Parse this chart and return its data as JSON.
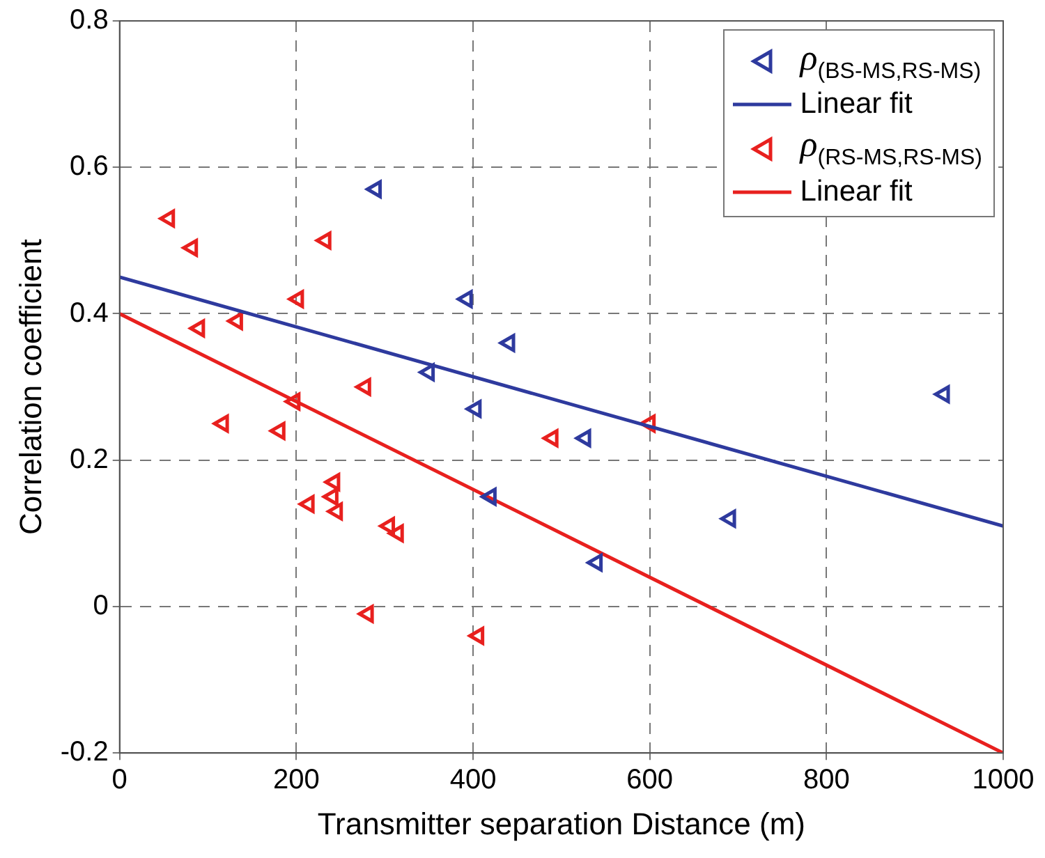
{
  "chart_data": {
    "type": "scatter",
    "xlabel": "Transmitter separation Distance (m)",
    "ylabel": "Correlation coefficient",
    "xlim": [
      0,
      1000
    ],
    "xticks": [
      0,
      200,
      400,
      600,
      800,
      1000
    ],
    "ylim": [
      -0.2,
      0.8
    ],
    "yticks": [
      -0.2,
      0,
      0.2,
      0.4,
      0.6,
      0.8
    ],
    "grid": true,
    "legend": "top right",
    "series": [
      {
        "name": "ρ$_{(BS-MS,RS-MS)}$",
        "marker": "triangle",
        "color": "#2e3a9e",
        "x": [
          290,
          393,
          441,
          350,
          403,
          527,
          933,
          691,
          540,
          420
        ],
        "values": [
          0.57,
          0.42,
          0.36,
          0.32,
          0.27,
          0.23,
          0.29,
          0.12,
          0.06,
          0.15
        ]
      },
      {
        "name": "Linear fit",
        "type": "line",
        "marker": "none",
        "color": "#2e3a9e",
        "x": [
          0,
          1000
        ],
        "values": [
          0.45,
          0.11
        ]
      },
      {
        "name": "ρ$_{(RS-MS,RS-MS)}$",
        "marker": "triangle",
        "color": "#e8201e",
        "x": [
          56,
          82,
          233,
          202,
          90,
          133,
          278,
          198,
          117,
          181,
          600,
          490,
          214,
          243,
          241,
          246,
          305,
          315,
          281,
          406
        ],
        "values": [
          0.53,
          0.49,
          0.5,
          0.42,
          0.38,
          0.39,
          0.3,
          0.28,
          0.25,
          0.24,
          0.25,
          0.23,
          0.14,
          0.17,
          0.15,
          0.13,
          0.11,
          0.1,
          -0.01,
          -0.04
        ]
      },
      {
        "name": "Linear fit",
        "type": "line",
        "marker": "none",
        "color": "#e8201e",
        "x": [
          0,
          1000
        ],
        "values": [
          0.4,
          -0.2
        ]
      }
    ]
  }
}
